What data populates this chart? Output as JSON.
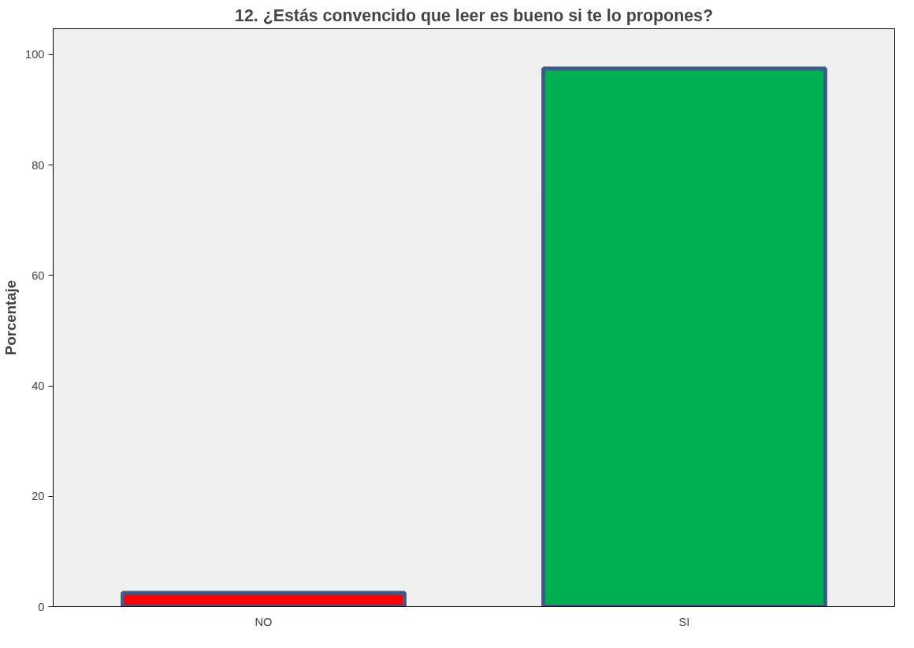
{
  "chart_data": {
    "type": "bar",
    "title": "12. ¿Estás convencido que leer es bueno si te lo propones?",
    "ylabel": "Porcentaje",
    "categories": [
      "NO",
      "SI"
    ],
    "values": [
      2.5,
      97.5
    ],
    "colors": [
      "#ff0000",
      "#00b050"
    ],
    "ylim": [
      0,
      104.7
    ],
    "yticks": [
      0,
      20,
      40,
      60,
      80,
      100
    ],
    "grid": false
  }
}
